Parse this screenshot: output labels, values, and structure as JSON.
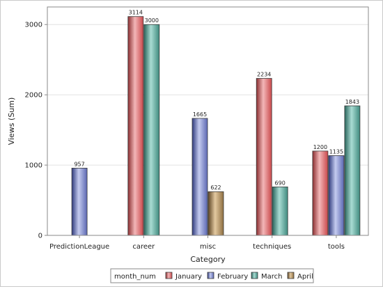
{
  "chart_data": {
    "type": "bar",
    "xlabel": "Category",
    "ylabel": "Views (Sum)",
    "ylim": [
      0,
      3250
    ],
    "yticks": [
      0,
      1000,
      2000,
      3000
    ],
    "grid": true,
    "legend_position": "bottom",
    "legend_title": "month_num",
    "categories": [
      "PredictionLeague",
      "career",
      "misc",
      "techniques",
      "tools"
    ],
    "series": [
      {
        "name": "January",
        "color": "#d9696b",
        "values": [
          null,
          3114,
          null,
          2234,
          1200
        ]
      },
      {
        "name": "February",
        "color": "#7b86c9",
        "values": [
          957,
          null,
          1665,
          null,
          1135
        ]
      },
      {
        "name": "March",
        "color": "#5fa89c",
        "values": [
          null,
          3000,
          null,
          690,
          1843
        ]
      },
      {
        "name": "April",
        "color": "#a88a5e",
        "values": [
          null,
          null,
          622,
          null,
          null
        ]
      }
    ]
  }
}
